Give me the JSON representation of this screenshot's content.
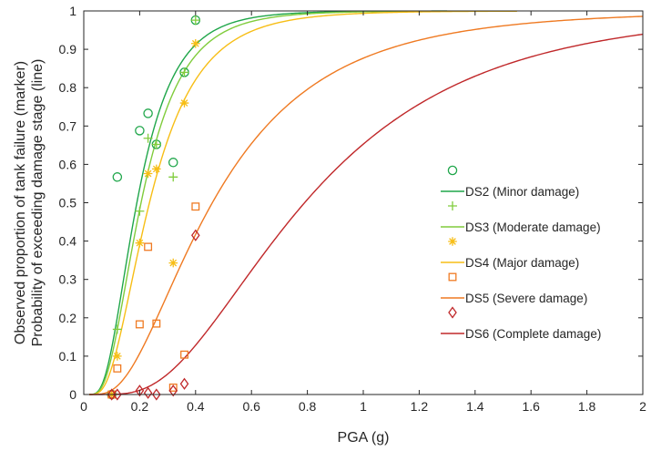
{
  "chart_data": {
    "type": "scatter",
    "xlabel": "PGA (g)",
    "ylabel_lines": [
      "Observed proportion of tank failure (marker)",
      "Probability of exceeding damage stage (line)"
    ],
    "xlim": [
      0,
      2
    ],
    "ylim": [
      0,
      1
    ],
    "xticks": [
      0,
      0.2,
      0.4,
      0.6,
      0.8,
      1,
      1.2,
      1.4,
      1.6,
      1.8,
      2
    ],
    "xtick_labels": [
      "0",
      "0.2",
      "0.4",
      "0.6",
      "0.8",
      "1",
      "1.2",
      "1.4",
      "1.6",
      "1.8",
      "2"
    ],
    "yticks": [
      0,
      0.1,
      0.2,
      0.3,
      0.4,
      0.5,
      0.6,
      0.7,
      0.8,
      0.9,
      1
    ],
    "ytick_labels": [
      "0",
      "0.1",
      "0.2",
      "0.3",
      "0.4",
      "0.5",
      "0.6",
      "0.7",
      "0.8",
      "0.9",
      "1"
    ],
    "grid": false,
    "legend_position": "right",
    "series": [
      {
        "id": "ds2",
        "name": "DS2 (Minor damage)",
        "color": "#1FA64A",
        "marker": "circle",
        "median": 0.19,
        "beta": 0.55,
        "curve_xmax": 1.3,
        "points": [
          [
            0.1,
            0.0
          ],
          [
            0.12,
            0.567
          ],
          [
            0.2,
            0.688
          ],
          [
            0.23,
            0.733
          ],
          [
            0.26,
            0.652
          ],
          [
            0.32,
            0.605
          ],
          [
            0.36,
            0.84
          ],
          [
            0.4,
            0.976
          ]
        ]
      },
      {
        "id": "ds3",
        "name": "DS3 (Moderate damage)",
        "color": "#80CC3C",
        "marker": "plus",
        "median": 0.205,
        "beta": 0.56,
        "curve_xmax": 1.3,
        "points": [
          [
            0.1,
            0.0
          ],
          [
            0.12,
            0.17
          ],
          [
            0.2,
            0.478
          ],
          [
            0.23,
            0.668
          ],
          [
            0.26,
            0.652
          ],
          [
            0.32,
            0.567
          ],
          [
            0.36,
            0.84
          ],
          [
            0.4,
            0.976
          ]
        ]
      },
      {
        "id": "ds4",
        "name": "DS4 (Major damage)",
        "color": "#F7BE16",
        "marker": "asterisk",
        "median": 0.235,
        "beta": 0.58,
        "curve_xmax": 1.55,
        "points": [
          [
            0.1,
            0.0
          ],
          [
            0.12,
            0.1
          ],
          [
            0.2,
            0.395
          ],
          [
            0.23,
            0.576
          ],
          [
            0.26,
            0.588
          ],
          [
            0.32,
            0.343
          ],
          [
            0.36,
            0.76
          ],
          [
            0.4,
            0.915
          ]
        ]
      },
      {
        "id": "ds5",
        "name": "DS5 (Severe damage)",
        "color": "#EF7A22",
        "marker": "square",
        "median": 0.46,
        "beta": 0.67,
        "curve_xmax": 2,
        "points": [
          [
            0.1,
            0.0
          ],
          [
            0.12,
            0.068
          ],
          [
            0.2,
            0.183
          ],
          [
            0.23,
            0.385
          ],
          [
            0.26,
            0.185
          ],
          [
            0.32,
            0.018
          ],
          [
            0.36,
            0.104
          ],
          [
            0.4,
            0.49
          ]
        ]
      },
      {
        "id": "ds6",
        "name": "DS6 (Complete damage)",
        "color": "#C0282A",
        "marker": "diamond",
        "median": 0.79,
        "beta": 0.6,
        "curve_xmax": 2,
        "points": [
          [
            0.1,
            0.0
          ],
          [
            0.12,
            0.0
          ],
          [
            0.2,
            0.01
          ],
          [
            0.23,
            0.004
          ],
          [
            0.26,
            0.0
          ],
          [
            0.32,
            0.01
          ],
          [
            0.36,
            0.028
          ],
          [
            0.4,
            0.415
          ]
        ]
      }
    ]
  }
}
